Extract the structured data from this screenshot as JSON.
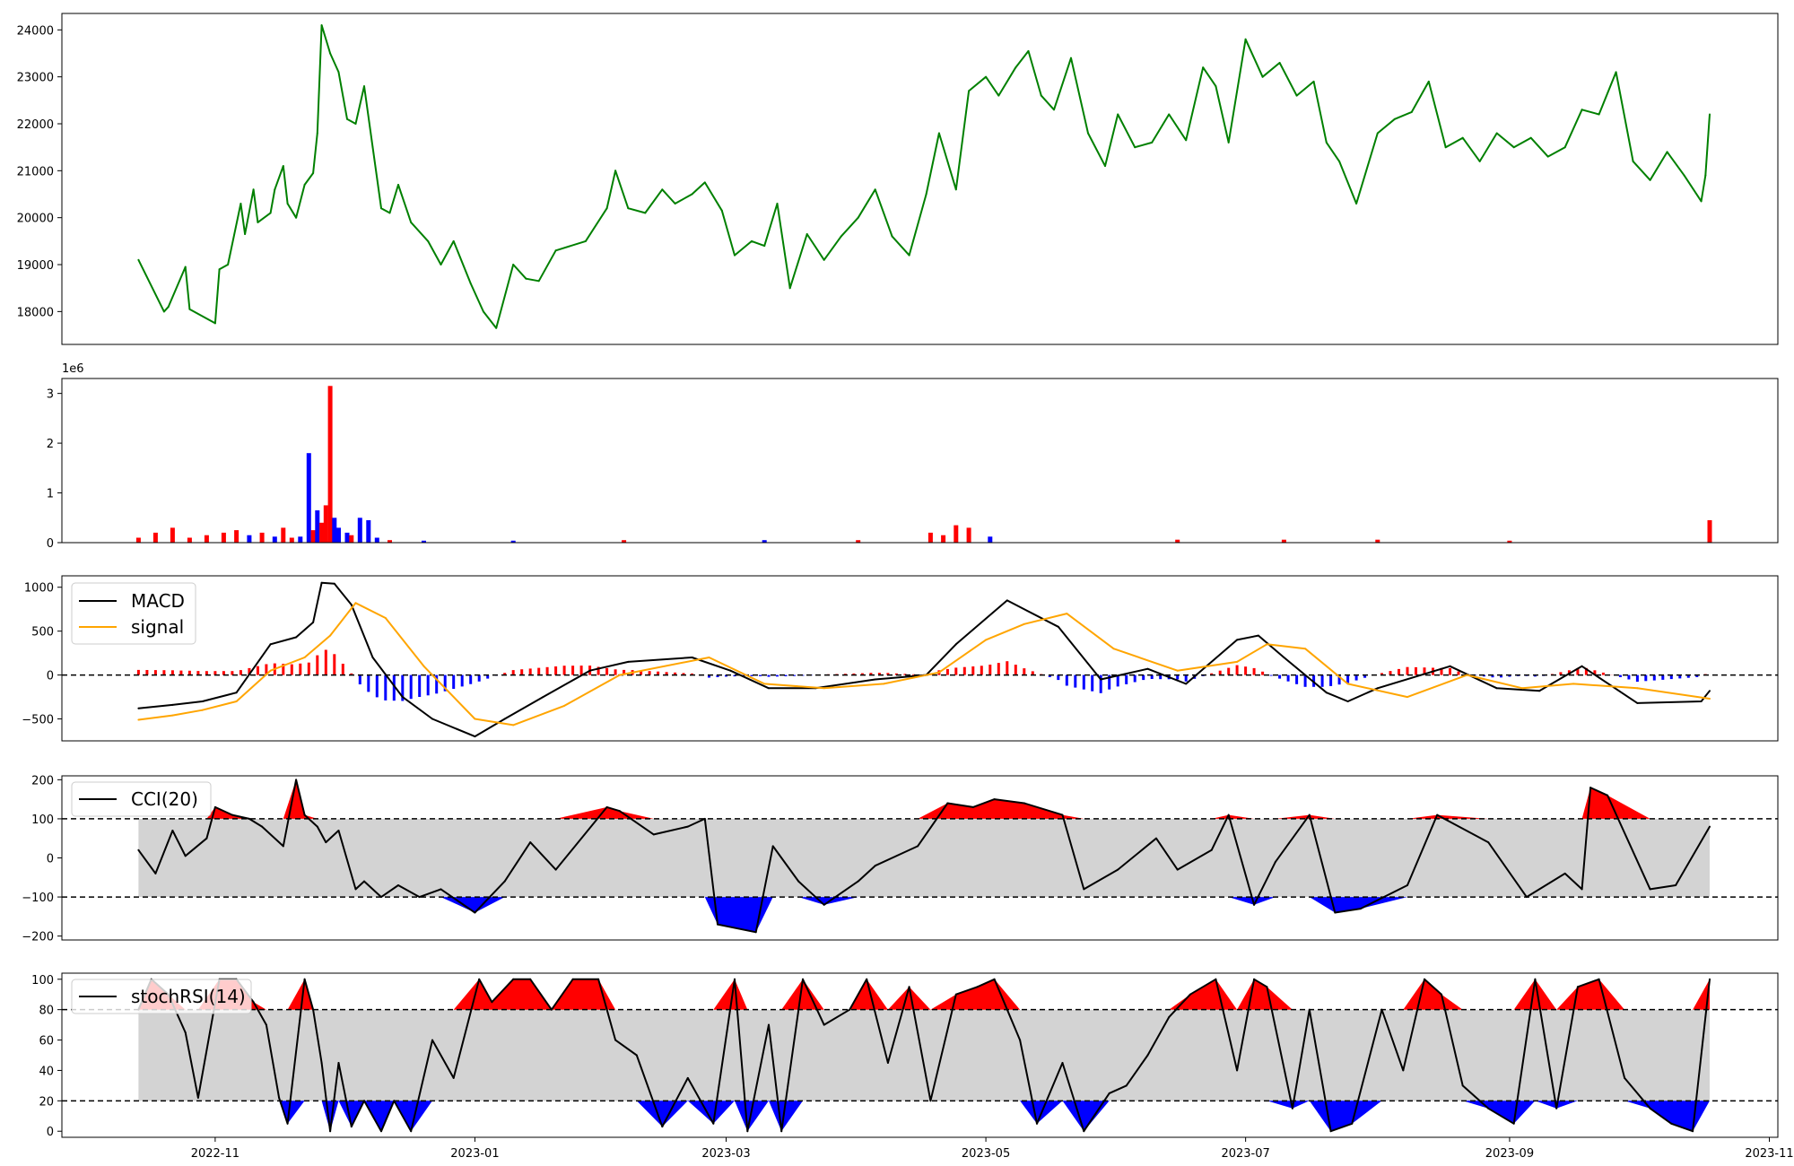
{
  "chart_data": [
    {
      "type": "line",
      "name": "price",
      "color": "#008000",
      "ylim": [
        17300,
        24350
      ],
      "yticks": [
        18000,
        19000,
        20000,
        21000,
        22000,
        23000,
        24000
      ],
      "ytick_labels": [
        "18000",
        "19000",
        "20000",
        "21000",
        "22000",
        "23000",
        "24000"
      ],
      "x": [
        "2022-10-14",
        "2022-10-20",
        "2022-10-21",
        "2022-10-25",
        "2022-10-26",
        "2022-11-01",
        "2022-11-02",
        "2022-11-04",
        "2022-11-07",
        "2022-11-08",
        "2022-11-10",
        "2022-11-11",
        "2022-11-14",
        "2022-11-15",
        "2022-11-17",
        "2022-11-18",
        "2022-11-20",
        "2022-11-22",
        "2022-11-24",
        "2022-11-25",
        "2022-11-26",
        "2022-11-28",
        "2022-11-30",
        "2022-12-02",
        "2022-12-04",
        "2022-12-06",
        "2022-12-08",
        "2022-12-10",
        "2022-12-12",
        "2022-12-14",
        "2022-12-17",
        "2022-12-21",
        "2022-12-24",
        "2022-12-27",
        "2022-12-31",
        "2023-01-03",
        "2023-01-06",
        "2023-01-10",
        "2023-01-13",
        "2023-01-16",
        "2023-01-20",
        "2023-01-27",
        "2023-02-01",
        "2023-02-03",
        "2023-02-06",
        "2023-02-10",
        "2023-02-14",
        "2023-02-17",
        "2023-02-21",
        "2023-02-24",
        "2023-02-28",
        "2023-03-03",
        "2023-03-07",
        "2023-03-10",
        "2023-03-13",
        "2023-03-16",
        "2023-03-20",
        "2023-03-24",
        "2023-03-28",
        "2023-04-01",
        "2023-04-05",
        "2023-04-09",
        "2023-04-13",
        "2023-04-17",
        "2023-04-20",
        "2023-04-24",
        "2023-04-27",
        "2023-05-01",
        "2023-05-04",
        "2023-05-08",
        "2023-05-11",
        "2023-05-14",
        "2023-05-17",
        "2023-05-21",
        "2023-05-25",
        "2023-05-29",
        "2023-06-01",
        "2023-06-05",
        "2023-06-09",
        "2023-06-13",
        "2023-06-17",
        "2023-06-21",
        "2023-06-24",
        "2023-06-27",
        "2023-07-01",
        "2023-07-05",
        "2023-07-09",
        "2023-07-13",
        "2023-07-17",
        "2023-07-20",
        "2023-07-23",
        "2023-07-27",
        "2023-08-01",
        "2023-08-05",
        "2023-08-09",
        "2023-08-13",
        "2023-08-17",
        "2023-08-21",
        "2023-08-25",
        "2023-08-29",
        "2023-09-02",
        "2023-09-06",
        "2023-09-10",
        "2023-09-14",
        "2023-09-18",
        "2023-09-22",
        "2023-09-26",
        "2023-09-30",
        "2023-10-04",
        "2023-10-08",
        "2023-10-12",
        "2023-10-16",
        "2023-10-17",
        "2023-10-18"
      ],
      "values": [
        19100,
        18000,
        18100,
        18950,
        18050,
        17750,
        18900,
        19000,
        20300,
        19650,
        20600,
        19900,
        20100,
        20600,
        21100,
        20300,
        20000,
        20700,
        20950,
        21800,
        24100,
        23500,
        23100,
        22100,
        22000,
        22800,
        21500,
        20200,
        20100,
        20700,
        19900,
        19500,
        19000,
        19500,
        18600,
        18000,
        17650,
        19000,
        18700,
        18650,
        19300,
        19500,
        20200,
        21000,
        20200,
        20100,
        20600,
        20300,
        20500,
        20750,
        20150,
        19200,
        19500,
        19400,
        20300,
        18500,
        19650,
        19100,
        19600,
        20000,
        20600,
        19600,
        19200,
        20500,
        21800,
        20600,
        22700,
        23000,
        22600,
        23200,
        23550,
        22600,
        22300,
        23400,
        21800,
        21100,
        22200,
        21500,
        21600,
        22200,
        21650,
        23200,
        22800,
        21600,
        23800,
        23000,
        23300,
        22600,
        22900,
        21600,
        21200,
        20300,
        21800,
        22100,
        22250,
        22900,
        21500,
        21700,
        21200,
        21800,
        21500,
        21700,
        21300,
        21500,
        22300,
        22200,
        23100,
        21200,
        20800,
        21400,
        20900,
        20350,
        20900,
        22200
      ]
    },
    {
      "type": "bar",
      "name": "volume",
      "scale_label": "1e6",
      "ylim": [
        0,
        3.3
      ],
      "yticks": [
        0,
        1,
        2,
        3
      ],
      "ytick_labels": [
        "0",
        "1",
        "2",
        "3"
      ],
      "colors": {
        "up": "#ff0000",
        "down": "#0000ff"
      },
      "x": [
        "2022-10-14",
        "2022-10-18",
        "2022-10-22",
        "2022-10-26",
        "2022-10-30",
        "2022-11-03",
        "2022-11-06",
        "2022-11-09",
        "2022-11-12",
        "2022-11-15",
        "2022-11-17",
        "2022-11-19",
        "2022-11-21",
        "2022-11-23",
        "2022-11-24",
        "2022-11-25",
        "2022-11-26",
        "2022-11-27",
        "2022-11-28",
        "2022-11-29",
        "2022-11-30",
        "2022-12-02",
        "2022-12-03",
        "2022-12-05",
        "2022-12-07",
        "2022-12-09",
        "2022-12-12",
        "2022-12-20",
        "2023-01-10",
        "2023-02-05",
        "2023-03-10",
        "2023-04-01",
        "2023-04-18",
        "2023-04-21",
        "2023-04-24",
        "2023-04-27",
        "2023-05-02",
        "2023-06-15",
        "2023-07-10",
        "2023-08-01",
        "2023-09-01",
        "2023-10-18"
      ],
      "values": [
        0.1,
        0.2,
        0.3,
        0.1,
        0.15,
        0.2,
        0.25,
        0.15,
        0.2,
        0.12,
        0.3,
        0.1,
        0.12,
        1.8,
        0.25,
        0.65,
        0.4,
        0.75,
        3.15,
        0.5,
        0.3,
        0.2,
        0.15,
        0.5,
        0.45,
        0.1,
        0.05,
        0.04,
        0.04,
        0.05,
        0.05,
        0.05,
        0.2,
        0.15,
        0.35,
        0.3,
        0.12,
        0.06,
        0.06,
        0.06,
        0.04,
        0.45
      ],
      "directions": [
        "up",
        "up",
        "up",
        "up",
        "up",
        "up",
        "up",
        "down",
        "up",
        "down",
        "up",
        "up",
        "down",
        "down",
        "up",
        "down",
        "up",
        "up",
        "up",
        "down",
        "down",
        "down",
        "up",
        "down",
        "down",
        "down",
        "up",
        "down",
        "down",
        "up",
        "down",
        "up",
        "up",
        "up",
        "up",
        "up",
        "down",
        "up",
        "up",
        "up",
        "up",
        "up"
      ]
    },
    {
      "type": "line",
      "name": "macd",
      "ylim": [
        -750,
        1130
      ],
      "yticks": [
        -500,
        0,
        500,
        1000
      ],
      "ytick_labels": [
        "−500",
        "0",
        "500",
        "1000"
      ],
      "hline": 0,
      "series": [
        {
          "name": "MACD",
          "color": "#000000",
          "x": [
            "2022-10-14",
            "2022-10-22",
            "2022-10-29",
            "2022-11-06",
            "2022-11-14",
            "2022-11-20",
            "2022-11-24",
            "2022-11-26",
            "2022-11-29",
            "2022-12-03",
            "2022-12-08",
            "2022-12-15",
            "2022-12-22",
            "2023-01-01",
            "2023-01-08",
            "2023-01-17",
            "2023-01-28",
            "2023-02-06",
            "2023-02-21",
            "2023-03-02",
            "2023-03-11",
            "2023-03-22",
            "2023-04-05",
            "2023-04-17",
            "2023-04-24",
            "2023-05-06",
            "2023-05-18",
            "2023-05-28",
            "2023-06-08",
            "2023-06-17",
            "2023-06-29",
            "2023-07-04",
            "2023-07-10",
            "2023-07-20",
            "2023-07-25",
            "2023-08-01",
            "2023-08-18",
            "2023-08-29",
            "2023-09-08",
            "2023-09-18",
            "2023-10-01",
            "2023-10-16",
            "2023-10-18"
          ],
          "values": [
            -380,
            -340,
            -300,
            -200,
            350,
            430,
            600,
            1050,
            1040,
            800,
            200,
            -250,
            -500,
            -700,
            -500,
            -250,
            50,
            150,
            200,
            50,
            -150,
            -150,
            -50,
            0,
            350,
            850,
            550,
            -50,
            70,
            -100,
            400,
            450,
            200,
            -200,
            -300,
            -150,
            100,
            -150,
            -180,
            100,
            -320,
            -300,
            -180
          ]
        },
        {
          "name": "signal",
          "color": "#ffa500",
          "x": [
            "2022-10-14",
            "2022-10-22",
            "2022-10-29",
            "2022-11-06",
            "2022-11-14",
            "2022-11-22",
            "2022-11-28",
            "2022-12-04",
            "2022-12-11",
            "2022-12-20",
            "2023-01-01",
            "2023-01-10",
            "2023-01-22",
            "2023-02-04",
            "2023-02-25",
            "2023-03-10",
            "2023-03-24",
            "2023-04-07",
            "2023-04-20",
            "2023-05-01",
            "2023-05-10",
            "2023-05-20",
            "2023-05-31",
            "2023-06-15",
            "2023-06-29",
            "2023-07-06",
            "2023-07-15",
            "2023-07-25",
            "2023-08-08",
            "2023-08-22",
            "2023-09-04",
            "2023-09-16",
            "2023-10-01",
            "2023-10-18"
          ],
          "values": [
            -510,
            -460,
            -400,
            -300,
            50,
            200,
            450,
            820,
            650,
            100,
            -500,
            -570,
            -350,
            0,
            200,
            -100,
            -150,
            -100,
            30,
            400,
            580,
            700,
            300,
            50,
            150,
            350,
            300,
            -100,
            -250,
            0,
            -150,
            -100,
            -150,
            -270
          ]
        }
      ],
      "legend": [
        "MACD",
        "signal"
      ],
      "legend_loc": "upper left"
    },
    {
      "type": "line",
      "name": "cci",
      "ylim": [
        -210,
        210
      ],
      "yticks": [
        -200,
        -100,
        0,
        100,
        200
      ],
      "ytick_labels": [
        "−200",
        "−100",
        "0",
        "100",
        "200"
      ],
      "hlines": [
        -100,
        100
      ],
      "band": [
        -100,
        100
      ],
      "colors": {
        "line": "#000000",
        "band": "#d3d3d3",
        "above": "#ff0000",
        "below": "#0000ff"
      },
      "series": [
        {
          "name": "CCI(20)",
          "x": [
            "2022-10-14",
            "2022-10-18",
            "2022-10-22",
            "2022-10-25",
            "2022-10-30",
            "2022-11-01",
            "2022-11-05",
            "2022-11-09",
            "2022-11-12",
            "2022-11-17",
            "2022-11-20",
            "2022-11-22",
            "2022-11-25",
            "2022-11-27",
            "2022-11-30",
            "2022-12-04",
            "2022-12-06",
            "2022-12-10",
            "2022-12-14",
            "2022-12-19",
            "2022-12-24",
            "2023-01-01",
            "2023-01-08",
            "2023-01-14",
            "2023-01-20",
            "2023-02-01",
            "2023-02-04",
            "2023-02-12",
            "2023-02-20",
            "2023-02-24",
            "2023-02-27",
            "2023-03-08",
            "2023-03-12",
            "2023-03-18",
            "2023-03-24",
            "2023-04-01",
            "2023-04-05",
            "2023-04-15",
            "2023-04-22",
            "2023-04-28",
            "2023-05-03",
            "2023-05-10",
            "2023-05-19",
            "2023-05-24",
            "2023-06-01",
            "2023-06-10",
            "2023-06-15",
            "2023-06-23",
            "2023-06-27",
            "2023-07-03",
            "2023-07-08",
            "2023-07-16",
            "2023-07-22",
            "2023-07-28",
            "2023-08-08",
            "2023-08-15",
            "2023-08-27",
            "2023-09-05",
            "2023-09-14",
            "2023-09-18",
            "2023-09-20",
            "2023-09-24",
            "2023-10-04",
            "2023-10-10",
            "2023-10-18"
          ],
          "values": [
            20,
            -40,
            70,
            5,
            50,
            130,
            110,
            100,
            80,
            30,
            200,
            110,
            80,
            40,
            70,
            -80,
            -60,
            -100,
            -70,
            -100,
            -80,
            -140,
            -60,
            40,
            -30,
            130,
            120,
            60,
            80,
            100,
            -170,
            -190,
            30,
            -60,
            -120,
            -60,
            -20,
            30,
            140,
            130,
            150,
            140,
            110,
            -80,
            -30,
            50,
            -30,
            20,
            110,
            -120,
            -10,
            110,
            -140,
            -130,
            -70,
            110,
            40,
            -100,
            -40,
            -80,
            180,
            160,
            -80,
            -70,
            80
          ]
        }
      ],
      "legend": [
        "CCI(20)"
      ],
      "legend_loc": "upper left"
    },
    {
      "type": "line",
      "name": "stochrsi",
      "ylim": [
        -4,
        104
      ],
      "yticks": [
        0,
        20,
        40,
        60,
        80,
        100
      ],
      "ytick_labels": [
        "0",
        "20",
        "40",
        "60",
        "80",
        "100"
      ],
      "hlines": [
        20,
        80
      ],
      "band": [
        20,
        80
      ],
      "colors": {
        "line": "#000000",
        "band": "#d3d3d3",
        "above": "#ff0000",
        "below": "#0000ff"
      },
      "series": [
        {
          "name": "stochRSI(14)",
          "x": [
            "2022-10-14",
            "2022-10-17",
            "2022-10-21",
            "2022-10-25",
            "2022-10-28",
            "2022-11-02",
            "2022-11-06",
            "2022-11-10",
            "2022-11-13",
            "2022-11-16",
            "2022-11-18",
            "2022-11-22",
            "2022-11-24",
            "2022-11-26",
            "2022-11-28",
            "2022-11-30",
            "2022-12-03",
            "2022-12-06",
            "2022-12-10",
            "2022-12-13",
            "2022-12-17",
            "2022-12-22",
            "2022-12-27",
            "2023-01-02",
            "2023-01-05",
            "2023-01-10",
            "2023-01-14",
            "2023-01-19",
            "2023-01-24",
            "2023-01-30",
            "2023-02-03",
            "2023-02-08",
            "2023-02-14",
            "2023-02-20",
            "2023-02-26",
            "2023-03-03",
            "2023-03-06",
            "2023-03-11",
            "2023-03-14",
            "2023-03-19",
            "2023-03-24",
            "2023-03-30",
            "2023-04-03",
            "2023-04-08",
            "2023-04-13",
            "2023-04-18",
            "2023-04-24",
            "2023-04-29",
            "2023-05-03",
            "2023-05-09",
            "2023-05-13",
            "2023-05-19",
            "2023-05-24",
            "2023-05-30",
            "2023-06-03",
            "2023-06-08",
            "2023-06-13",
            "2023-06-18",
            "2023-06-24",
            "2023-06-29",
            "2023-07-03",
            "2023-07-06",
            "2023-07-12",
            "2023-07-16",
            "2023-07-21",
            "2023-07-26",
            "2023-08-02",
            "2023-08-07",
            "2023-08-12",
            "2023-08-16",
            "2023-08-21",
            "2023-08-27",
            "2023-09-02",
            "2023-09-07",
            "2023-09-12",
            "2023-09-17",
            "2023-09-22",
            "2023-09-28",
            "2023-10-04",
            "2023-10-09",
            "2023-10-14",
            "2023-10-18"
          ],
          "values": [
            80,
            100,
            90,
            65,
            22,
            100,
            100,
            85,
            70,
            22,
            5,
            100,
            80,
            45,
            0,
            45,
            3,
            20,
            0,
            20,
            0,
            60,
            35,
            100,
            85,
            100,
            100,
            80,
            100,
            100,
            60,
            50,
            3,
            35,
            5,
            100,
            0,
            70,
            0,
            100,
            70,
            80,
            100,
            45,
            95,
            20,
            90,
            95,
            100,
            60,
            5,
            45,
            0,
            25,
            30,
            50,
            75,
            90,
            100,
            40,
            100,
            95,
            15,
            80,
            0,
            5,
            80,
            40,
            100,
            90,
            30,
            15,
            5,
            100,
            15,
            95,
            100,
            35,
            15,
            5,
            0,
            100
          ]
        }
      ],
      "legend": [
        "stochRSI(14)"
      ],
      "legend_loc": "upper left"
    }
  ],
  "x_axis": {
    "domain": [
      "2022-09-26",
      "2023-11-03"
    ],
    "ticks": [
      "2022-11-01",
      "2023-01-01",
      "2023-03-01",
      "2023-05-01",
      "2023-07-01",
      "2023-09-01",
      "2023-11-01"
    ],
    "tick_labels": [
      "2022-11",
      "2023-01",
      "2023-03",
      "2023-05",
      "2023-07",
      "2023-09",
      "2023-11"
    ]
  }
}
